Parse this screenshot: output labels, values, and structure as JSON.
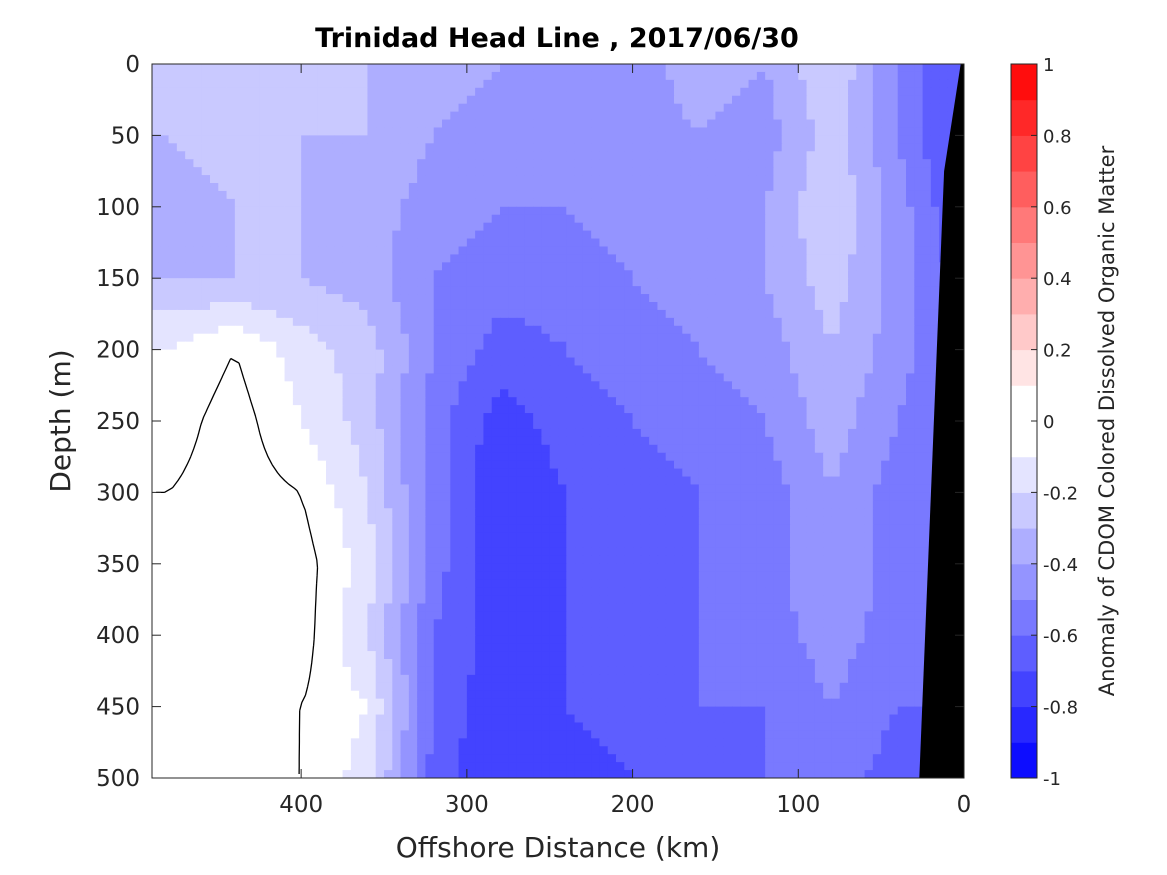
{
  "chart_data": {
    "type": "heatmap",
    "title": "Trinidad Head Line , 2017/06/30",
    "xlabel": "Offshore Distance (km)",
    "ylabel": "Depth (m)",
    "colorbar_label": "Anomaly of CDOM Colored Dissolved Organic Matter",
    "xlim": [
      490,
      0
    ],
    "ylim": [
      0,
      500
    ],
    "x_reversed": true,
    "y_reversed": true,
    "clim": [
      -1,
      1
    ],
    "colormap": "blue-white-red",
    "levels": [
      -1,
      -0.9,
      -0.8,
      -0.7,
      -0.6,
      -0.5,
      -0.4,
      -0.3,
      -0.2,
      -0.1,
      0,
      0.1,
      0.2,
      0.3,
      0.4,
      0.5,
      0.6,
      0.7,
      0.8,
      0.9,
      1
    ],
    "x_ticks": [
      400,
      300,
      200,
      100,
      0
    ],
    "x_tick_labels": [
      "400",
      "300",
      "200",
      "100",
      "0"
    ],
    "y_ticks": [
      0,
      50,
      100,
      150,
      200,
      250,
      300,
      350,
      400,
      450,
      500
    ],
    "y_tick_labels": [
      "0",
      "50",
      "100",
      "150",
      "200",
      "250",
      "300",
      "350",
      "400",
      "450",
      "500"
    ],
    "colorbar_ticks": [
      1,
      0.8,
      0.6,
      0.4,
      0.2,
      0,
      -0.2,
      -0.4,
      -0.6,
      -0.8,
      -1
    ],
    "colorbar_tick_labels": [
      "1",
      "0.8",
      "0.6",
      "0.4",
      "0.2",
      "0",
      "-0.2",
      "-0.4",
      "-0.6",
      "-0.8",
      "-1"
    ],
    "x": [
      480,
      440,
      400,
      360,
      320,
      280,
      240,
      200,
      160,
      120,
      80,
      40,
      10
    ],
    "depth": [
      0,
      50,
      100,
      150,
      200,
      250,
      300,
      350,
      400,
      450,
      500
    ],
    "values": [
      [
        -0.25,
        -0.2,
        -0.25,
        -0.3,
        -0.35,
        -0.4,
        -0.4,
        -0.45,
        -0.35,
        -0.4,
        -0.2,
        -0.5,
        -0.7
      ],
      [
        -0.3,
        -0.25,
        -0.3,
        -0.3,
        -0.4,
        -0.45,
        -0.45,
        -0.45,
        -0.4,
        -0.45,
        -0.25,
        -0.5,
        -0.7
      ],
      [
        -0.35,
        -0.3,
        -0.3,
        -0.35,
        -0.45,
        -0.5,
        -0.5,
        -0.45,
        -0.45,
        -0.4,
        -0.2,
        -0.45,
        -0.65
      ],
      [
        -0.3,
        -0.3,
        -0.3,
        -0.35,
        -0.5,
        -0.55,
        -0.55,
        -0.5,
        -0.45,
        -0.4,
        -0.25,
        -0.45,
        -0.6
      ],
      [
        -0.1,
        0.0,
        -0.15,
        -0.25,
        -0.5,
        -0.65,
        -0.6,
        -0.55,
        -0.5,
        -0.45,
        -0.3,
        -0.45,
        -0.6
      ],
      [
        -0.05,
        0.05,
        -0.1,
        -0.25,
        -0.55,
        -0.75,
        -0.65,
        -0.6,
        -0.55,
        -0.5,
        -0.35,
        -0.5,
        -0.6
      ],
      [
        0.0,
        0.05,
        0.0,
        -0.2,
        -0.55,
        -0.8,
        -0.7,
        -0.65,
        -0.6,
        -0.55,
        -0.4,
        -0.55,
        -0.6
      ],
      [
        0.05,
        0.0,
        0.05,
        -0.15,
        -0.55,
        -0.8,
        -0.7,
        -0.65,
        -0.6,
        -0.55,
        -0.4,
        -0.55,
        -0.6
      ],
      [
        0.05,
        0.0,
        0.05,
        -0.2,
        -0.6,
        -0.75,
        -0.7,
        -0.65,
        -0.6,
        -0.55,
        -0.45,
        -0.55,
        -0.6
      ],
      [
        0.0,
        0.05,
        0.0,
        -0.1,
        -0.6,
        -0.8,
        -0.7,
        -0.65,
        -0.6,
        -0.6,
        -0.5,
        -0.6,
        -0.6
      ],
      [
        0.05,
        0.05,
        0.0,
        -0.15,
        -0.65,
        -0.8,
        -0.75,
        -0.7,
        -0.65,
        -0.6,
        -0.55,
        -0.65,
        -0.65
      ]
    ],
    "bathymetry": [
      [
        2,
        0
      ],
      [
        12,
        75
      ],
      [
        27,
        500
      ]
    ],
    "bathymetry_color": "#000000",
    "contour_levels": [
      0
    ],
    "contour_color": "#000000",
    "grid": false,
    "colorbar_placement": "right"
  }
}
